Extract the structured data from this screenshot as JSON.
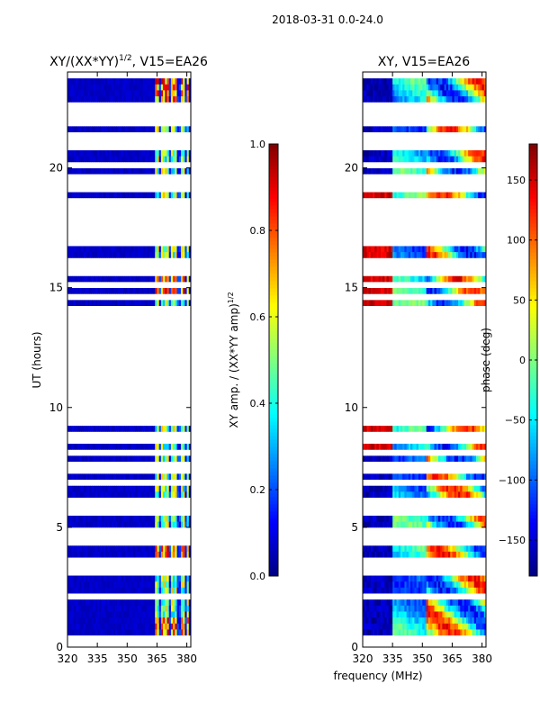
{
  "chart_data": {
    "suptitle": "2018-03-31 0.0-24.0",
    "shared_xlabel": "frequency (MHz)",
    "panels": [
      {
        "type": "heatmap",
        "title": "XY/(XX*YY)",
        "title_sup": "1/2",
        "title_suffix": ", V15=EA26",
        "ylabel": "UT (hours)",
        "xlim": [
          320,
          382
        ],
        "ylim": [
          0,
          24
        ],
        "xticks": [
          320,
          335,
          350,
          365,
          380
        ],
        "yticks": [
          0,
          5,
          10,
          15,
          20
        ],
        "quantity": "amplitude_ratio",
        "active_band_mhz": [
          364,
          381
        ],
        "active_channels_mhz": [
          366.5,
          371.5,
          376.0,
          379.5
        ],
        "colorbar": {
          "label": "XY amp. / (XX*YY amp)",
          "label_sup": "1/2",
          "range": [
            0.0,
            1.0
          ],
          "ticks": [
            "0.0",
            "0.2",
            "0.4",
            "0.6",
            "0.8",
            "1.0"
          ],
          "colormap": "jet"
        }
      },
      {
        "type": "heatmap",
        "title": "XY, V15=EA26",
        "ylabel": "",
        "xlim": [
          320,
          382
        ],
        "ylim": [
          0,
          24
        ],
        "xticks": [
          320,
          335,
          350,
          365,
          380
        ],
        "yticks": [
          0,
          5,
          10,
          15,
          20
        ],
        "quantity": "phase",
        "colorbar": {
          "label": "phase (deg)",
          "range": [
            -180,
            180
          ],
          "ticks": [
            "−150",
            "−100",
            "−50",
            "0",
            "50",
            "100",
            "150"
          ],
          "tick_values": [
            -150,
            -100,
            -50,
            0,
            50,
            100,
            150
          ],
          "colormap": "jet"
        }
      }
    ],
    "flagged_ut_hours": [
      0.1,
      0.3,
      2.1,
      3.1,
      3.35,
      3.55,
      3.65,
      4.3,
      4.55,
      4.8,
      5.55,
      5.75,
      6.1,
      6.8,
      7.5,
      7.62,
      7.74,
      8.2,
      8.65,
      8.85,
      9.5,
      9.9,
      10.15,
      10.25,
      10.55,
      10.75,
      10.95,
      11.25,
      11.55,
      11.75,
      12.2,
      12.3,
      12.42,
      12.55,
      12.65,
      13.0,
      13.3,
      13.5,
      13.75,
      14.05,
      14.6,
      15.2,
      15.75,
      16.0,
      16.85,
      17.15,
      17.25,
      17.35,
      17.5,
      17.65,
      17.8,
      18.1,
      18.25,
      18.4,
      18.55,
      19.05,
      19.2,
      19.35,
      19.7,
      20.2,
      20.95,
      21.1,
      21.35,
      22.0,
      22.3,
      22.45,
      22.65,
      23.95
    ]
  }
}
